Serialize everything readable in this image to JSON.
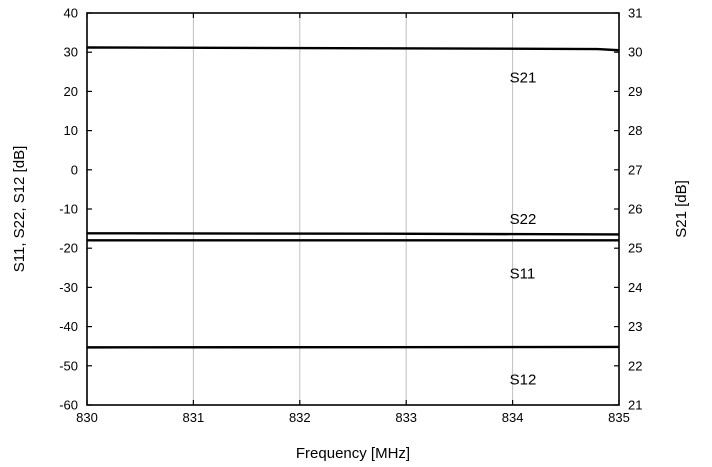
{
  "chart_data": {
    "type": "line",
    "xlabel": "Frequency [MHz]",
    "ylabel_left": "S11, S22, S12 [dB]",
    "ylabel_right": "S21 [dB]",
    "xlim": [
      830,
      835
    ],
    "ylim_left": [
      -60,
      40
    ],
    "ylim_right": [
      21,
      31
    ],
    "x_ticks": [
      830,
      831,
      832,
      833,
      834,
      835
    ],
    "y_ticks_left": [
      -60,
      -50,
      -40,
      -30,
      -20,
      -10,
      0,
      10,
      20,
      30,
      40
    ],
    "y_ticks_right": [
      21,
      22,
      23,
      24,
      25,
      26,
      27,
      28,
      29,
      30,
      31
    ],
    "grid": "vertical",
    "series": [
      {
        "name": "S21",
        "axis": "right",
        "x": [
          830,
          832.8,
          834.8,
          835
        ],
        "values": [
          30.12,
          30.1,
          30.08,
          30.05
        ]
      },
      {
        "name": "S22",
        "axis": "left",
        "x": [
          830,
          832.8,
          835
        ],
        "values": [
          -16.2,
          -16.3,
          -16.5
        ]
      },
      {
        "name": "S11",
        "axis": "left",
        "x": [
          830,
          835
        ],
        "values": [
          -18.0,
          -18.0
        ]
      },
      {
        "name": "S12",
        "axis": "left",
        "x": [
          830,
          835
        ],
        "values": [
          -45.3,
          -45.2
        ]
      }
    ],
    "series_labels": [
      {
        "text": "S21",
        "x": 834,
        "y_left": 23.5
      },
      {
        "text": "S22",
        "x": 834,
        "y_left": -12.5
      },
      {
        "text": "S11",
        "x": 834,
        "y_left": -26.5
      },
      {
        "text": "S12",
        "x": 834,
        "y_left": -53.5
      }
    ]
  }
}
